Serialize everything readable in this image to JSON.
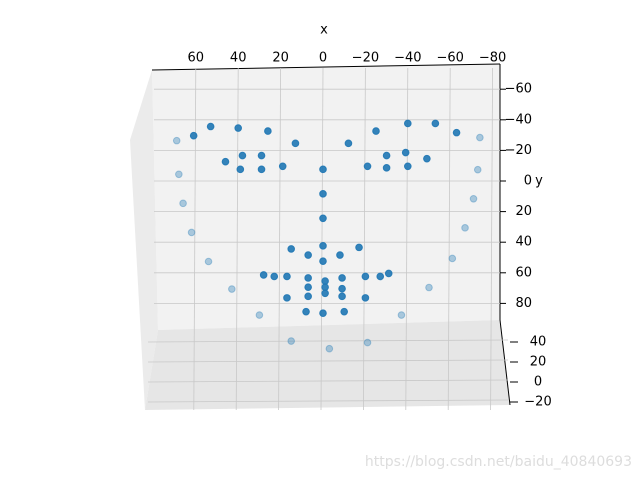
{
  "chart_data": {
    "type": "scatter3d",
    "xlabel": "x",
    "ylabel": "y",
    "xlim": [
      76,
      -85
    ],
    "ylim": [
      -70,
      110
    ],
    "zlim": [
      -25,
      45
    ],
    "xticks": [
      60,
      40,
      20,
      0,
      {
        "value": -20,
        "label": "−20"
      },
      {
        "value": -40,
        "label": "−40"
      },
      {
        "value": -60,
        "label": "−60"
      },
      {
        "value": -80,
        "label": "−80"
      }
    ],
    "yticks": [
      {
        "value": -60,
        "label": "−60"
      },
      {
        "value": -40,
        "label": "−40"
      },
      {
        "value": -20,
        "label": "−20"
      },
      0,
      20,
      40,
      60,
      80
    ],
    "zticks": [
      {
        "value": -20,
        "label": "−20"
      },
      0,
      20,
      40
    ],
    "grid": true,
    "series": [
      {
        "color": "#1f77b4",
        "x": [
          53,
          40,
          26,
          13,
          61,
          38,
          29,
          46,
          39,
          29,
          19,
          0,
          0,
          0,
          0,
          -12,
          -25,
          -40,
          -53,
          -63,
          -30,
          -39,
          -49,
          -21,
          -30,
          -40,
          15,
          7,
          0,
          -8,
          -17,
          28,
          23,
          17,
          7,
          -1,
          -9,
          -20,
          -27,
          -31,
          7,
          -1,
          -9,
          -1,
          7,
          17,
          -9,
          -20,
          8,
          0,
          -10,
          69,
          68,
          66,
          62,
          54,
          43,
          30,
          15,
          -3,
          -21,
          -37,
          -50,
          -61,
          -67,
          -71,
          -73,
          -74
        ],
        "y": [
          -33,
          -32,
          -30,
          -22,
          -27,
          -14,
          -14,
          -10,
          -5,
          -5,
          -7,
          -5,
          11,
          27,
          45,
          -22,
          -30,
          -35,
          -35,
          -29,
          -14,
          -16,
          -12,
          -7,
          -6,
          -7,
          47,
          51,
          55,
          51,
          46,
          64,
          65,
          65,
          66,
          68,
          66,
          65,
          65,
          63,
          72,
          72,
          73,
          76,
          78,
          79,
          78,
          79,
          88,
          89,
          88,
          -29,
          -7,
          12,
          31,
          50,
          68,
          85,
          102,
          107,
          103,
          85,
          67,
          48,
          28,
          9,
          -10,
          -31
        ],
        "z": [
          10,
          10,
          10,
          10,
          10,
          10,
          10,
          10,
          10,
          10,
          10,
          10,
          10,
          10,
          10,
          10,
          10,
          10,
          10,
          10,
          10,
          10,
          10,
          10,
          10,
          10,
          10,
          10,
          10,
          10,
          10,
          10,
          10,
          10,
          10,
          10,
          10,
          10,
          10,
          10,
          10,
          10,
          10,
          10,
          10,
          10,
          10,
          10,
          10,
          10,
          10,
          -10,
          -10,
          -10,
          -10,
          -10,
          -10,
          -10,
          -10,
          -10,
          -10,
          -10,
          -10,
          -10,
          -10,
          -10,
          -10,
          -10
        ]
      }
    ],
    "watermark": "https://blog.csdn.net/baidu_40840693"
  }
}
